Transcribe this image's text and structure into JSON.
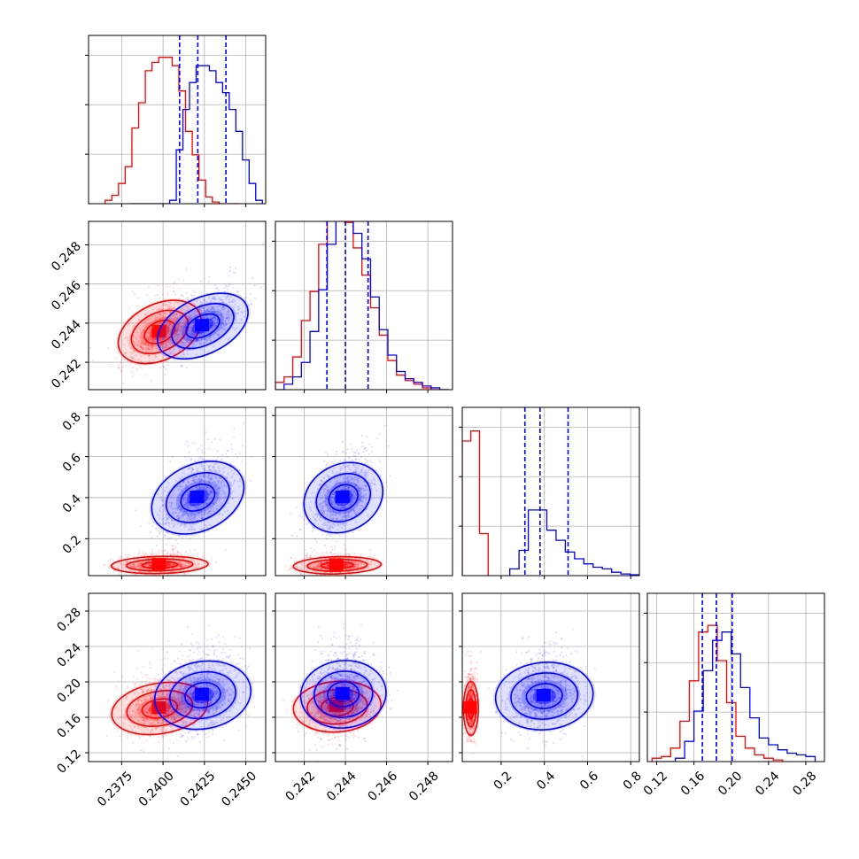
{
  "chart_data": {
    "type": "corner",
    "colors": {
      "series_a": "#ff0000",
      "series_b": "#0000ff"
    },
    "params": [
      {
        "lim": [
          0.2355,
          0.2462
        ],
        "ticks": [
          0.2375,
          0.24,
          0.2425,
          0.245
        ],
        "tick_labels": [
          "0.2375",
          "0.2400",
          "0.2425",
          "0.2450"
        ]
      },
      {
        "lim": [
          0.2406,
          0.2492
        ],
        "ticks": [
          0.242,
          0.244,
          0.246,
          0.248
        ],
        "tick_labels": [
          "0.242",
          "0.244",
          "0.246",
          "0.248"
        ]
      },
      {
        "lim": [
          0.02,
          0.84
        ],
        "ticks": [
          0.2,
          0.4,
          0.6,
          0.8
        ],
        "tick_labels": [
          "0.2",
          "0.4",
          "0.6",
          "0.8"
        ]
      },
      {
        "lim": [
          0.11,
          0.3
        ],
        "ticks": [
          0.12,
          0.16,
          0.2,
          0.24,
          0.28
        ],
        "tick_labels": [
          "0.12",
          "0.16",
          "0.20",
          "0.24",
          "0.28"
        ]
      }
    ],
    "diagonal": [
      {
        "quantiles": [
          0.241,
          0.2421,
          0.2438
        ],
        "series_a": {
          "edges": [
            0.2365,
            0.2446
          ],
          "counts": [
            0.02,
            0.05,
            0.12,
            0.22,
            0.45,
            0.6,
            0.79,
            0.84,
            0.87,
            0.87,
            0.82,
            0.67,
            0.43,
            0.29,
            0.14,
            0.04,
            0.01,
            0,
            0,
            0
          ]
        },
        "series_b": {
          "edges": [
            0.238,
            0.246
          ],
          "counts": [
            0,
            0,
            0,
            0,
            0,
            0,
            0.02,
            0.32,
            0.56,
            0.72,
            0.82,
            0.82,
            0.79,
            0.72,
            0.66,
            0.56,
            0.43,
            0.26,
            0.12,
            0.02
          ]
        }
      },
      {
        "quantiles": [
          0.2431,
          0.244,
          0.2451
        ],
        "series_a": {
          "edges": [
            0.2406,
            0.249
          ],
          "counts": [
            0.04,
            0.07,
            0.18,
            0.38,
            0.54,
            0.8,
            0.95,
            0.99,
            0.92,
            0.78,
            0.63,
            0.45,
            0.3,
            0.16,
            0.08,
            0.05,
            0.03,
            0.01,
            0,
            0
          ]
        },
        "series_b": {
          "edges": [
            0.2406,
            0.249
          ],
          "counts": [
            0,
            0.03,
            0.07,
            0.15,
            0.32,
            0.55,
            0.8,
            1.0,
            0.97,
            0.86,
            0.72,
            0.51,
            0.33,
            0.19,
            0.1,
            0.06,
            0.04,
            0.02,
            0.01,
            0
          ]
        },
        "overflow": true
      },
      {
        "quantiles": [
          0.31,
          0.38,
          0.51
        ],
        "series_a": {
          "edges": [
            0.02,
            0.14
          ],
          "counts": [
            0.8,
            0.86,
            0.25
          ]
        },
        "series_b": {
          "edges": [
            0.24,
            0.84
          ],
          "counts": [
            0.04,
            0.15,
            0.39,
            0.39,
            0.27,
            0.21,
            0.14,
            0.1,
            0.07,
            0.05,
            0.04,
            0.02,
            0.01,
            0.005
          ]
        }
      },
      {
        "quantiles": [
          0.169,
          0.184,
          0.201
        ],
        "series_a": {
          "edges": [
            0.115,
            0.255
          ],
          "counts": [
            0.02,
            0.03,
            0.08,
            0.24,
            0.48,
            0.77,
            0.81,
            0.6,
            0.35,
            0.15,
            0.08,
            0.04,
            0.02,
            0.01
          ]
        },
        "series_b": {
          "edges": [
            0.12,
            0.29
          ],
          "counts": [
            0,
            0,
            0.02,
            0.12,
            0.3,
            0.54,
            0.72,
            0.77,
            0.64,
            0.44,
            0.26,
            0.14,
            0.1,
            0.07,
            0.05,
            0.04,
            0.03
          ]
        }
      }
    ],
    "pairs": [
      {
        "row": 1,
        "col": 0,
        "series_a": {
          "center": [
            0.2398,
            0.24355
          ],
          "sigma": [
            0.001,
            0.00075
          ],
          "rho": 0.62
        },
        "series_b": {
          "center": [
            0.2424,
            0.24385
          ],
          "sigma": [
            0.0011,
            0.00075
          ],
          "rho": 0.68
        }
      },
      {
        "row": 2,
        "col": 0,
        "series_a": {
          "center": [
            0.2398,
            0.072
          ],
          "sigma": [
            0.0011,
            0.022
          ],
          "rho": 0.1
        },
        "series_b": {
          "center": [
            0.2421,
            0.4
          ],
          "sigma": [
            0.0011,
            0.085
          ],
          "rho": 0.55
        }
      },
      {
        "row": 2,
        "col": 1,
        "series_a": {
          "center": [
            0.2436,
            0.07
          ],
          "sigma": [
            0.0008,
            0.022
          ],
          "rho": 0.1
        },
        "series_b": {
          "center": [
            0.2439,
            0.4
          ],
          "sigma": [
            0.00075,
            0.085
          ],
          "rho": 0.55
        }
      },
      {
        "row": 3,
        "col": 0,
        "series_a": {
          "center": [
            0.2398,
            0.17
          ],
          "sigma": [
            0.0011,
            0.015
          ],
          "rho": 0.25
        },
        "series_b": {
          "center": [
            0.2424,
            0.185
          ],
          "sigma": [
            0.0011,
            0.02
          ],
          "rho": 0.2
        }
      },
      {
        "row": 3,
        "col": 1,
        "series_a": {
          "center": [
            0.2436,
            0.172
          ],
          "sigma": [
            0.0008,
            0.015
          ],
          "rho": 0.1
        },
        "series_b": {
          "center": [
            0.2439,
            0.186
          ],
          "sigma": [
            0.00078,
            0.02
          ],
          "rho": 0.1
        }
      },
      {
        "row": 3,
        "col": 2,
        "series_a": {
          "center": [
            0.06,
            0.17
          ],
          "sigma": [
            0.013,
            0.016
          ],
          "rho": 0.0
        },
        "series_b": {
          "center": [
            0.4,
            0.184
          ],
          "sigma": [
            0.085,
            0.02
          ],
          "rho": 0.1
        }
      }
    ]
  }
}
